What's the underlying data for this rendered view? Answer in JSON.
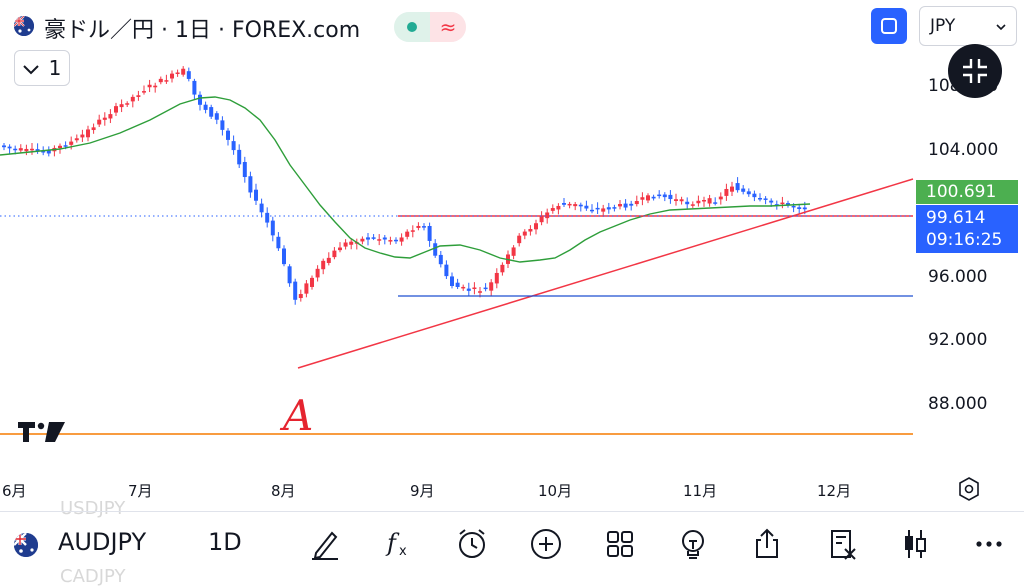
{
  "header": {
    "title": "豪ドル／円 · 1日 · FOREX.com",
    "indicator_symbol": "≈",
    "collapse_count": "1",
    "currency": "JPY"
  },
  "price_axis": {
    "labels": [
      "104.000",
      "96.000",
      "92.000",
      "88.000"
    ],
    "partial_top": "108.000",
    "current_indicator_value": "100.691",
    "current_price": "99.614",
    "countdown": "09:16:25"
  },
  "time_axis": [
    "6月",
    "7月",
    "8月",
    "9月",
    "10月",
    "11月",
    "12月"
  ],
  "annotation": "A",
  "bottom_bar": {
    "symbol": "AUDJPY",
    "timeframe": "1D",
    "ghost_prev": "USDJPY",
    "ghost_next": "CADJPY",
    "tools": [
      "draw-icon",
      "indicators-icon",
      "alert-icon",
      "add-icon",
      "layouts-icon",
      "ideas-icon",
      "share-icon",
      "trading-panel-icon",
      "chart-type-icon",
      "more-icon"
    ]
  },
  "colors": {
    "up": "#f23645",
    "down": "#2962ff",
    "ma": "#2e9e3a",
    "trend": "#f23645",
    "support": "#1e4fd0",
    "level": "#f57c00",
    "indicator_tag": "#4caf50",
    "price_tag": "#2962ff"
  }
}
